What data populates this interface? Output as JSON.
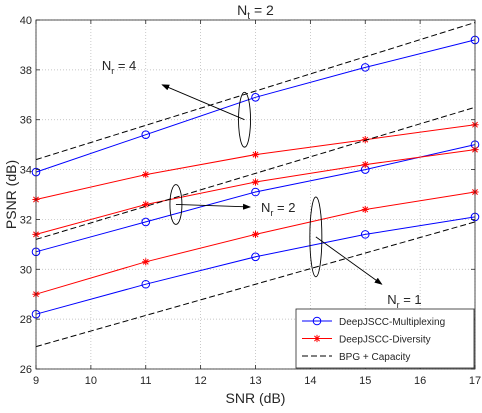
{
  "chart_data": {
    "type": "line",
    "title": "N_t = 2",
    "title_parts": {
      "base": "N",
      "sub": "t",
      "rest": " = 2"
    },
    "xlabel": "SNR (dB)",
    "ylabel": "PSNR (dB)",
    "xlim": [
      9,
      17
    ],
    "ylim": [
      26,
      40
    ],
    "xticks": [
      "9",
      "10",
      "11",
      "12",
      "13",
      "14",
      "15",
      "16",
      "17"
    ],
    "yticks": [
      "26",
      "28",
      "30",
      "32",
      "34",
      "36",
      "38",
      "40"
    ],
    "grid": "dotted",
    "legend_position": "bottom-right",
    "legend": [
      {
        "label": "DeepJSCC-Multiplexing",
        "color": "#0000ff",
        "marker": "circle",
        "dash": "solid"
      },
      {
        "label": "DeepJSCC-Diversity",
        "color": "#ff0000",
        "marker": "star",
        "dash": "solid"
      },
      {
        "label": "BPG + Capacity",
        "color": "#000000",
        "marker": "none",
        "dash": "dashed"
      }
    ],
    "series": [
      {
        "group": "Nr=4",
        "style": 0,
        "x": [
          9,
          11,
          13,
          15,
          17
        ],
        "y": [
          33.9,
          35.4,
          36.9,
          38.1,
          39.2
        ]
      },
      {
        "group": "Nr=4",
        "style": 1,
        "x": [
          9,
          11,
          13,
          15,
          17
        ],
        "y": [
          32.8,
          33.8,
          34.6,
          35.2,
          35.8
        ]
      },
      {
        "group": "Nr=4",
        "style": 2,
        "x": [
          9,
          17
        ],
        "y": [
          34.4,
          39.9
        ]
      },
      {
        "group": "Nr=2",
        "style": 0,
        "x": [
          9,
          11,
          13,
          15,
          17
        ],
        "y": [
          30.7,
          31.9,
          33.1,
          34.0,
          35.0
        ]
      },
      {
        "group": "Nr=2",
        "style": 1,
        "x": [
          9,
          11,
          13,
          15,
          17
        ],
        "y": [
          31.4,
          32.6,
          33.5,
          34.2,
          34.8
        ]
      },
      {
        "group": "Nr=2",
        "style": 2,
        "x": [
          9,
          17
        ],
        "y": [
          31.2,
          36.5
        ]
      },
      {
        "group": "Nr=1",
        "style": 0,
        "x": [
          9,
          11,
          13,
          15,
          17
        ],
        "y": [
          28.2,
          29.4,
          30.5,
          31.4,
          32.1
        ]
      },
      {
        "group": "Nr=1",
        "style": 1,
        "x": [
          9,
          11,
          13,
          15,
          17
        ],
        "y": [
          29.0,
          30.3,
          31.4,
          32.4,
          33.1
        ]
      },
      {
        "group": "Nr=1",
        "style": 2,
        "x": [
          9,
          17
        ],
        "y": [
          26.9,
          31.9
        ]
      }
    ],
    "annotations": [
      {
        "base": "N",
        "sub": "r",
        "rest": " = 4",
        "ellipse_center": [
          12.8,
          36.0
        ],
        "ellipse_ry": 1.1,
        "text_at": [
          10.2,
          38.2
        ],
        "arrow_to": [
          11.3,
          37.4
        ]
      },
      {
        "base": "N",
        "sub": "r",
        "rest": " = 2",
        "ellipse_center": [
          11.55,
          32.6
        ],
        "ellipse_ry": 0.8,
        "text_at": [
          13.1,
          32.5
        ],
        "arrow_to": [
          12.9,
          32.5
        ]
      },
      {
        "base": "N",
        "sub": "r",
        "rest": " = 1",
        "ellipse_center": [
          14.1,
          31.3
        ],
        "ellipse_ry": 1.6,
        "text_at": [
          15.4,
          28.8
        ],
        "arrow_to": [
          15.3,
          29.4
        ]
      }
    ]
  }
}
